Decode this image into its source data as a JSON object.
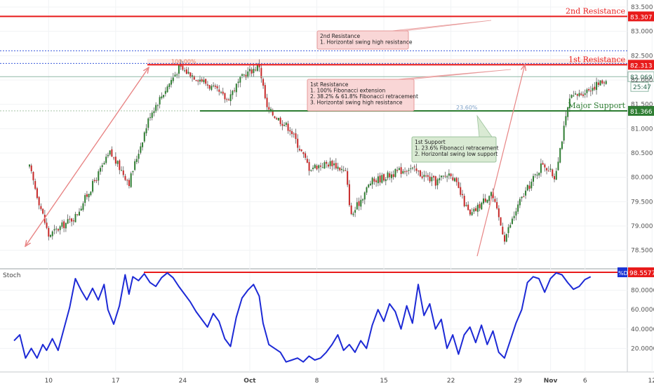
{
  "chart_data": {
    "type": "candlestick",
    "price_axis": {
      "range": [
        78.25,
        83.5
      ],
      "ticks": [
        {
          "value": 78.5,
          "label": "78.500"
        },
        {
          "value": 79.0,
          "label": "79.000"
        },
        {
          "value": 79.5,
          "label": "79.500"
        },
        {
          "value": 80.0,
          "label": "80.000"
        },
        {
          "value": 80.5,
          "label": "80.500"
        },
        {
          "value": 81.0,
          "label": "81.000"
        },
        {
          "value": 81.5,
          "label": "81.500"
        },
        {
          "value": 82.0,
          "label": "82.000"
        },
        {
          "value": 82.5,
          "label": "82.500"
        },
        {
          "value": 83.0,
          "label": "83.000"
        },
        {
          "value": 83.5,
          "label": "83.500"
        }
      ]
    },
    "time_axis": {
      "ticks": [
        {
          "bar": 10,
          "label": "10"
        },
        {
          "bar": 45,
          "label": "17"
        },
        {
          "bar": 80,
          "label": "24"
        },
        {
          "bar": 115,
          "label": "Oct"
        },
        {
          "bar": 150,
          "label": "8"
        },
        {
          "bar": 185,
          "label": "15"
        },
        {
          "bar": 220,
          "label": "22"
        },
        {
          "bar": 255,
          "label": "29"
        },
        {
          "bar": 272,
          "label": "Nov"
        },
        {
          "bar": 290,
          "label": "6"
        },
        {
          "bar": 325,
          "label": "12"
        }
      ]
    },
    "price_path": [
      [
        0,
        80.2
      ],
      [
        10,
        78.8
      ],
      [
        24,
        79.2
      ],
      [
        42,
        80.5
      ],
      [
        52,
        79.9
      ],
      [
        63,
        81.3
      ],
      [
        78,
        82.25
      ],
      [
        90,
        82.0
      ],
      [
        103,
        81.6
      ],
      [
        112,
        82.1
      ],
      [
        120,
        82.3
      ],
      [
        124,
        81.4
      ],
      [
        136,
        81.0
      ],
      [
        146,
        80.2
      ],
      [
        158,
        80.3
      ],
      [
        165,
        80.1
      ],
      [
        168,
        79.2
      ],
      [
        178,
        79.9
      ],
      [
        198,
        80.2
      ],
      [
        212,
        79.9
      ],
      [
        220,
        80.1
      ],
      [
        230,
        79.2
      ],
      [
        241,
        79.7
      ],
      [
        248,
        78.75
      ],
      [
        256,
        79.5
      ],
      [
        268,
        80.3
      ],
      [
        274,
        80.0
      ],
      [
        282,
        81.6
      ],
      [
        296,
        81.9
      ],
      [
        301,
        82.0
      ]
    ],
    "levels": [
      {
        "name": "2nd Resistance",
        "value": 83.307,
        "label": "83.307",
        "color": "#e81b1b"
      },
      {
        "name": "1st Resistance",
        "value": 82.313,
        "label": "82.313",
        "color": "#e81b1b"
      },
      {
        "name": "Major Support",
        "value": 81.366,
        "label": "81.366",
        "color": "#2e7d32"
      }
    ],
    "current_price": {
      "value": 82.069,
      "label": "82.069",
      "countdown": "25:47"
    },
    "fibonacci": [
      {
        "label": "100.00%",
        "value": 82.313
      },
      {
        "label": "23.60%",
        "value": 81.366
      }
    ],
    "annotations": [
      {
        "id": "resist2",
        "lines": [
          "2nd Resistance",
          "1. Horizontal swing high resistance"
        ]
      },
      {
        "id": "resist1",
        "lines": [
          "1st Resistance",
          "1. 100% Fibonacci extension",
          "2. 38.2% & 61.8% Fibonacci retracement",
          "3. Horizontal swing high resistance"
        ]
      },
      {
        "id": "support1",
        "lines": [
          "1st Support",
          "1. 23.6% Fibonacci retracement",
          "2. Horizontal swing low support"
        ]
      }
    ],
    "stochastic": {
      "title": "Stoch",
      "badge": "%D",
      "range": [
        0,
        100
      ],
      "level": {
        "value": 98.5577,
        "label": "98.5577"
      },
      "ticks": [
        {
          "value": 20,
          "label": "20.0000"
        },
        {
          "value": 40,
          "label": "40.0000"
        },
        {
          "value": 60,
          "label": "60.0000"
        },
        {
          "value": 80,
          "label": "80.0000"
        }
      ],
      "path": [
        [
          0,
          28
        ],
        [
          3,
          34
        ],
        [
          6,
          10
        ],
        [
          9,
          20
        ],
        [
          12,
          10
        ],
        [
          15,
          24
        ],
        [
          17,
          18
        ],
        [
          20,
          30
        ],
        [
          23,
          18
        ],
        [
          26,
          40
        ],
        [
          29,
          62
        ],
        [
          32,
          92
        ],
        [
          35,
          80
        ],
        [
          38,
          70
        ],
        [
          41,
          82
        ],
        [
          44,
          70
        ],
        [
          47,
          86
        ],
        [
          49,
          60
        ],
        [
          52,
          45
        ],
        [
          55,
          64
        ],
        [
          58,
          96
        ],
        [
          60,
          76
        ],
        [
          62,
          94
        ],
        [
          65,
          90
        ],
        [
          68,
          97
        ],
        [
          71,
          88
        ],
        [
          74,
          84
        ],
        [
          77,
          93
        ],
        [
          80,
          98
        ],
        [
          83,
          93
        ],
        [
          86,
          84
        ],
        [
          89,
          76
        ],
        [
          92,
          68
        ],
        [
          95,
          58
        ],
        [
          98,
          50
        ],
        [
          101,
          42
        ],
        [
          104,
          56
        ],
        [
          107,
          48
        ],
        [
          110,
          30
        ],
        [
          113,
          22
        ],
        [
          116,
          52
        ],
        [
          119,
          72
        ],
        [
          122,
          80
        ],
        [
          125,
          86
        ],
        [
          128,
          74
        ],
        [
          130,
          46
        ],
        [
          133,
          24
        ],
        [
          136,
          20
        ],
        [
          139,
          16
        ],
        [
          142,
          6
        ],
        [
          145,
          8
        ],
        [
          148,
          10
        ],
        [
          151,
          6
        ],
        [
          154,
          12
        ],
        [
          157,
          8
        ],
        [
          160,
          10
        ],
        [
          163,
          16
        ],
        [
          166,
          24
        ],
        [
          169,
          34
        ],
        [
          172,
          18
        ],
        [
          175,
          24
        ],
        [
          178,
          16
        ],
        [
          181,
          28
        ],
        [
          184,
          20
        ],
        [
          187,
          44
        ],
        [
          190,
          60
        ],
        [
          193,
          48
        ],
        [
          196,
          66
        ],
        [
          199,
          58
        ],
        [
          202,
          40
        ],
        [
          205,
          64
        ],
        [
          208,
          46
        ],
        [
          211,
          86
        ],
        [
          214,
          54
        ],
        [
          217,
          66
        ],
        [
          220,
          40
        ],
        [
          223,
          50
        ],
        [
          226,
          20
        ],
        [
          229,
          34
        ],
        [
          232,
          14
        ],
        [
          235,
          34
        ],
        [
          238,
          42
        ],
        [
          241,
          26
        ],
        [
          244,
          44
        ],
        [
          247,
          24
        ],
        [
          250,
          38
        ],
        [
          253,
          16
        ],
        [
          256,
          10
        ],
        [
          259,
          28
        ],
        [
          262,
          46
        ],
        [
          265,
          60
        ],
        [
          268,
          88
        ],
        [
          271,
          94
        ],
        [
          274,
          92
        ],
        [
          277,
          78
        ],
        [
          280,
          92
        ],
        [
          283,
          98
        ],
        [
          286,
          96
        ],
        [
          289,
          88
        ],
        [
          292,
          81
        ],
        [
          295,
          84
        ],
        [
          298,
          91
        ],
        [
          301,
          94
        ]
      ]
    }
  }
}
